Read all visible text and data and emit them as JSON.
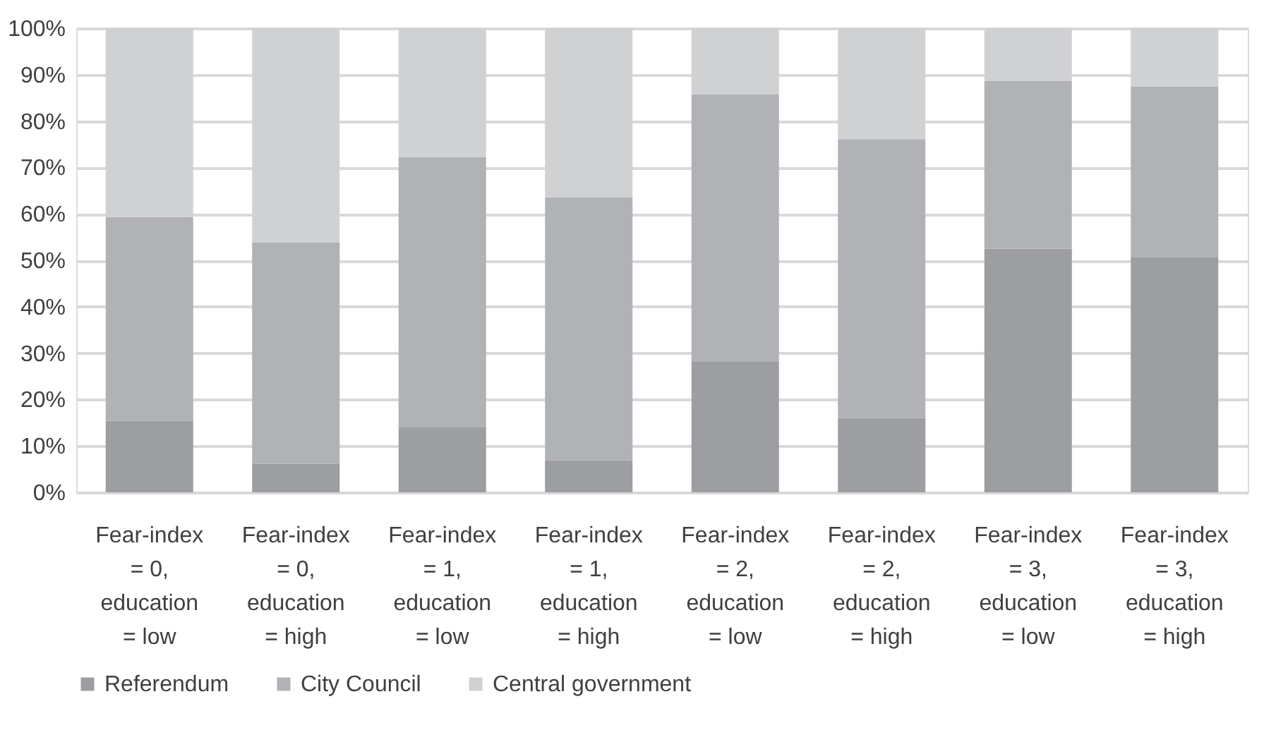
{
  "chart_data": {
    "type": "bar",
    "stacked": true,
    "categories": [
      "Fear-index = 0, education = low",
      "Fear-index = 0, education = high",
      "Fear-index = 1, education = low",
      "Fear-index = 1, education = high",
      "Fear-index = 2, education = low",
      "Fear-index = 2, education = high",
      "Fear-index = 3, education = low",
      "Fear-index = 3, education = high"
    ],
    "series": [
      {
        "name": "Referendum",
        "color": "#9d9ea2",
        "values": [
          15.4,
          6.1,
          14.0,
          6.9,
          28.1,
          16.0,
          52.5,
          50.6
        ]
      },
      {
        "name": "City Council",
        "color": "#b1b2b6",
        "values": [
          43.9,
          47.7,
          58.2,
          56.7,
          57.7,
          60.1,
          36.1,
          36.8
        ]
      },
      {
        "name": "Central government",
        "color": "#d0d1d3",
        "values": [
          40.7,
          46.2,
          27.8,
          36.4,
          14.2,
          23.9,
          11.4,
          12.6
        ]
      }
    ],
    "ylim": [
      0,
      100
    ],
    "yticks": [
      {
        "value": 0,
        "label": "0%"
      },
      {
        "value": 10,
        "label": "10%"
      },
      {
        "value": 20,
        "label": "20%"
      },
      {
        "value": 30,
        "label": "30%"
      },
      {
        "value": 40,
        "label": "40%"
      },
      {
        "value": 50,
        "label": "50%"
      },
      {
        "value": 60,
        "label": "60%"
      },
      {
        "value": 70,
        "label": "70%"
      },
      {
        "value": 80,
        "label": "80%"
      },
      {
        "value": 90,
        "label": "90%"
      },
      {
        "value": 100,
        "label": "100%"
      }
    ],
    "grid": "y",
    "legend": "bottom"
  }
}
